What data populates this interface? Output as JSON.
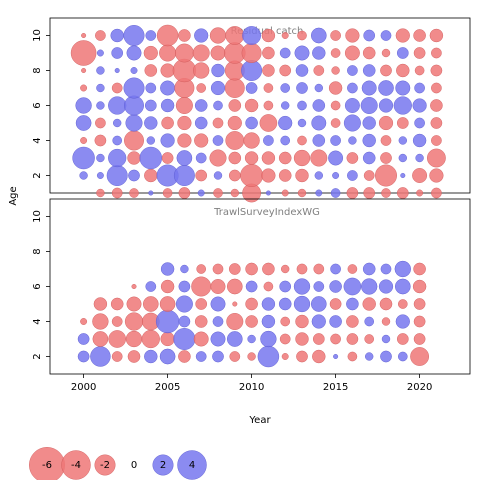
{
  "chart_data": {
    "type": "scatter",
    "subtype": "bubble-residuals",
    "xlabel": "Year",
    "ylabel": "Age",
    "xlim": [
      1998,
      2023
    ],
    "ylim": [
      1,
      11
    ],
    "x_ticks": [
      "2000",
      "2005",
      "2010",
      "2015",
      "2020"
    ],
    "y_ticks": [
      "2",
      "4",
      "6",
      "8",
      "10"
    ],
    "colors": {
      "positive": "#7777ee",
      "negative": "#ee7777",
      "edge_positive": "#5555cc",
      "edge_negative": "#cc5555"
    },
    "panels": [
      {
        "title": "Residual catch",
        "years": [
          2000,
          2001,
          2002,
          2003,
          2004,
          2005,
          2006,
          2007,
          2008,
          2009,
          2010,
          2011,
          2012,
          2013,
          2014,
          2015,
          2016,
          2017,
          2018,
          2019,
          2020,
          2021
        ],
        "ages": [
          1,
          2,
          3,
          4,
          5,
          6,
          7,
          8,
          9,
          10
        ],
        "residuals": [
          [
            0,
            -0.3,
            -0.5,
            -0.4,
            0.1,
            -0.4,
            -0.6,
            0.2,
            -0.4,
            -0.3,
            -1.6,
            0.1,
            -0.2,
            -0.3,
            0.2,
            0.4,
            -0.6,
            -0.6,
            -0.4,
            -0.6,
            -0.2,
            -0.5
          ],
          [
            0.3,
            0.2,
            2,
            0.6,
            -0.8,
            2.2,
            2,
            -0.6,
            0.3,
            -0.6,
            -2.4,
            -0.9,
            -0.7,
            -0.8,
            0.3,
            0.2,
            0.5,
            -0.5,
            -2.2,
            0.1,
            -1.0,
            -0.9
          ],
          [
            2.3,
            0.3,
            1.5,
            -0.8,
            2.3,
            -0.6,
            1.1,
            0.5,
            -1.3,
            -0.7,
            -0.8,
            -0.8,
            -0.7,
            -1.2,
            -1.3,
            1.0,
            -0.6,
            0.7,
            -0.6,
            0.3,
            0.3,
            -1.6
          ],
          [
            -0.2,
            -0.6,
            0.4,
            -1.8,
            0.3,
            0.9,
            -0.9,
            -0.9,
            0.5,
            -1.6,
            -1.2,
            0.5,
            0.4,
            -0.4,
            0.7,
            0.5,
            0.3,
            0.8,
            -0.5,
            0.3,
            0.8,
            -0.5
          ],
          [
            1.1,
            -0.5,
            0.3,
            1.3,
            0.8,
            -0.7,
            -0.9,
            0.7,
            -0.5,
            -0.9,
            0.7,
            -1.4,
            0.9,
            0.3,
            1.0,
            -0.4,
            1.3,
            0.8,
            -0.9,
            -0.6,
            0.5,
            -0.6
          ],
          [
            1.2,
            0.3,
            1.5,
            1.8,
            0.6,
            0.8,
            -1.3,
            0.7,
            0.4,
            -0.7,
            -0.8,
            -0.4,
            0.3,
            0.4,
            0.7,
            -0.4,
            1.0,
            1.3,
            0.9,
            1.5,
            0.9,
            -0.7
          ],
          [
            -0.2,
            0.3,
            -0.5,
            2.0,
            0.5,
            1.0,
            -1.8,
            -0.4,
            0.9,
            -1.8,
            0.6,
            -0.4,
            0.4,
            0.6,
            0.3,
            -0.8,
            0.5,
            1.0,
            1.1,
            1.0,
            0.5,
            -0.5
          ],
          [
            -0.1,
            0.3,
            0.1,
            0.2,
            -0.7,
            -0.9,
            -2.5,
            -1.2,
            0.8,
            -1.8,
            2.0,
            -0.7,
            -0.6,
            0.7,
            -0.5,
            -0.3,
            0.5,
            0.7,
            -0.6,
            -0.8,
            -0.4,
            -0.6
          ],
          [
            -3.0,
            0.2,
            0.6,
            1.0,
            -0.9,
            -1.3,
            -1.6,
            -1.3,
            -1.0,
            -2.1,
            -1.8,
            -0.7,
            0.5,
            1.0,
            0.8,
            -0.4,
            -1.0,
            -0.7,
            -0.3,
            0.6,
            -0.6,
            -0.5
          ],
          [
            -0.1,
            -0.5,
            0.8,
            2.0,
            0.5,
            -2.1,
            -0.7,
            0.9,
            -1.2,
            -1.6,
            1.6,
            -0.8,
            -0.2,
            -0.4,
            1.1,
            -0.5,
            -0.9,
            0.6,
            0.5,
            -0.9,
            -0.7,
            -0.8
          ]
        ]
      },
      {
        "title": "TrawlSurveyIndexWG",
        "years": [
          2000,
          2001,
          2002,
          2003,
          2004,
          2005,
          2006,
          2007,
          2008,
          2009,
          2010,
          2011,
          2012,
          2013,
          2014,
          2015,
          2016,
          2017,
          2018,
          2019,
          2020
        ],
        "ages": [
          2,
          3,
          4,
          5,
          6,
          7
        ],
        "residuals": [
          [
            0.6,
            1.9,
            -0.5,
            -0.7,
            0.8,
            1.1,
            -0.7,
            0.5,
            0.6,
            -0.5,
            -0.3,
            2.1,
            -0.2,
            -0.6,
            -0.8,
            0.1,
            -0.4,
            0.3,
            0.6,
            0.4,
            -1.6
          ],
          [
            0.6,
            -1.1,
            -1.4,
            -1.2,
            -1.5,
            -0.9,
            2.2,
            -1.0,
            1.0,
            1.1,
            0.3,
            1.2,
            -0.5,
            -0.8,
            -0.6,
            -0.5,
            -0.6,
            -0.4,
            0.3,
            -0.6,
            -0.6
          ],
          [
            -0.2,
            -1.2,
            -0.5,
            -1.5,
            -1.4,
            2.5,
            0.6,
            -0.7,
            0.5,
            -1.3,
            -0.7,
            0.8,
            -0.4,
            -0.8,
            0.9,
            0.7,
            -0.7,
            0.4,
            -0.3,
            0.9,
            -0.6
          ],
          [
            0,
            -0.8,
            -0.7,
            -1.0,
            -1.1,
            -1.1,
            1.3,
            -0.6,
            1.0,
            -0.1,
            -0.7,
            0.8,
            0.7,
            1.2,
            1.1,
            -0.6,
            0.7,
            -0.8,
            -0.7,
            -0.4,
            -0.6
          ],
          [
            0,
            0,
            0,
            -0.1,
            0.5,
            -0.8,
            0.6,
            -1.8,
            -1.0,
            -1.1,
            0.6,
            -0.4,
            0.6,
            1.2,
            0.5,
            0.7,
            1.4,
            1.2,
            0.9,
            1.1,
            -0.8
          ],
          [
            0,
            0,
            0,
            0,
            0,
            0.8,
            0.3,
            -0.4,
            -0.5,
            -0.6,
            -0.7,
            -0.7,
            -0.3,
            -0.5,
            -0.5,
            0.5,
            -0.4,
            0.7,
            0.5,
            1.2,
            -0.7
          ]
        ]
      }
    ],
    "legend": {
      "placement": "bottom-left",
      "entries": [
        {
          "label": "-6",
          "value": -6
        },
        {
          "label": "-4",
          "value": -4
        },
        {
          "label": "-2",
          "value": -2
        },
        {
          "label": "0",
          "value": 0
        },
        {
          "label": "2",
          "value": 2
        },
        {
          "label": "4",
          "value": 4
        }
      ]
    }
  }
}
